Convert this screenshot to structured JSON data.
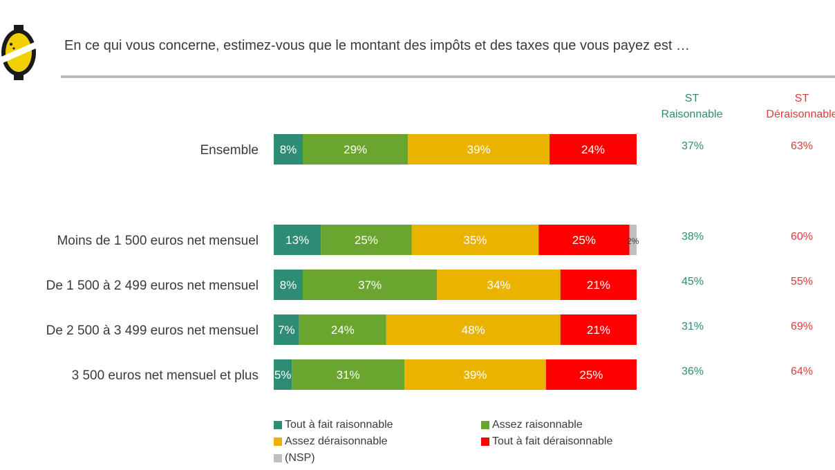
{
  "question": "En ce qui vous concerne, estimez-vous que le montant des impôts et des taxes que vous payez est …",
  "st_headers": {
    "raisonnable": "ST\nRaisonnable",
    "deraisonnable": "ST\nDéraisonnable"
  },
  "colors": {
    "tout_fait_raisonnable": "#2e8b74",
    "assez_raisonnable": "#6aa62e",
    "assez_deraisonnable": "#eab300",
    "tout_fait_deraisonnable": "#ff0000",
    "nsp": "#c0c0c0",
    "st_raisonnable_text": "#2e8b74",
    "st_deraisonnable_text": "#e03a3a"
  },
  "chart_data": {
    "type": "bar",
    "orientation": "horizontal",
    "stacked": true,
    "unit": "%",
    "categories": [
      "Ensemble",
      "Moins de 1 500 euros net mensuel",
      "De 1 500 à 2 499 euros net mensuel",
      "De 2 500 à 3 499 euros net mensuel",
      "3 500 euros net mensuel et plus"
    ],
    "series": [
      {
        "name": "Tout à fait raisonnable",
        "values": [
          8,
          13,
          8,
          7,
          5
        ]
      },
      {
        "name": "Assez raisonnable",
        "values": [
          29,
          25,
          37,
          24,
          31
        ]
      },
      {
        "name": "Assez déraisonnable",
        "values": [
          39,
          35,
          34,
          48,
          39
        ]
      },
      {
        "name": "Tout à fait déraisonnable",
        "values": [
          24,
          25,
          21,
          21,
          25
        ]
      },
      {
        "name": "(NSP)",
        "values": [
          0,
          2,
          0,
          0,
          0
        ]
      }
    ],
    "data_labels": [
      [
        "8%",
        "29%",
        "39%",
        "24%",
        ""
      ],
      [
        "13%",
        "25%",
        "35%",
        "25%",
        "2%"
      ],
      [
        "8%",
        "37%",
        "34%",
        "21%",
        ""
      ],
      [
        "7%",
        "24%",
        "48%",
        "21%",
        ""
      ],
      [
        "5%",
        "31%",
        "39%",
        "25%",
        ""
      ]
    ],
    "st_raisonnable": [
      "37%",
      "38%",
      "45%",
      "31%",
      "36%"
    ],
    "st_deraisonnable": [
      "63%",
      "60%",
      "55%",
      "69%",
      "64%"
    ],
    "legend": [
      "Tout à fait raisonnable",
      "Assez raisonnable",
      "Assez déraisonnable",
      "Tout à fait déraisonnable",
      "(NSP)"
    ],
    "legend_position": "bottom"
  }
}
